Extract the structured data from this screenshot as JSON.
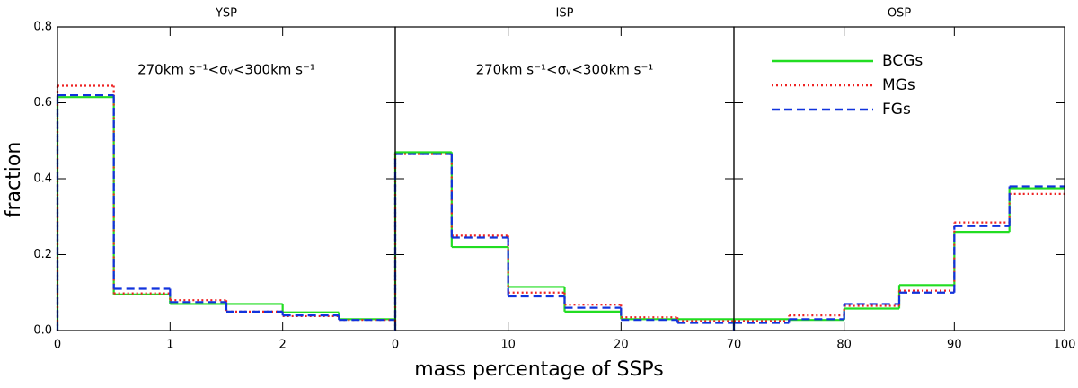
{
  "chart_data": [
    {
      "type": "histogram",
      "title": "YSP",
      "annotation": "270km s⁻¹<σᵥ<300km s⁻¹",
      "bins": [
        0,
        0.5,
        1,
        1.5,
        2,
        2.5,
        3
      ],
      "xlim": [
        0,
        3
      ],
      "xticks": [
        0,
        1,
        2
      ],
      "ylim": [
        0,
        0.8
      ],
      "yticks": [
        {
          "value": 0,
          "label": "0.0"
        },
        0.2,
        0.4,
        0.6,
        0.8
      ],
      "series": [
        {
          "values": [
            0.615,
            0.095,
            0.07,
            0.07,
            0.048,
            0.03
          ]
        },
        {
          "values": [
            0.645,
            0.098,
            0.08,
            0.05,
            0.038,
            0.028
          ]
        },
        {
          "values": [
            0.62,
            0.11,
            0.075,
            0.05,
            0.04,
            0.028
          ]
        }
      ]
    },
    {
      "type": "histogram",
      "title": "ISP",
      "annotation": "270km s⁻¹<σᵥ<300km s⁻¹",
      "bins": [
        0,
        5,
        10,
        15,
        20,
        25,
        30
      ],
      "xlim": [
        0,
        30
      ],
      "xticks": [
        0,
        10,
        20
      ],
      "ylim": [
        0,
        0.8
      ],
      "series": [
        {
          "values": [
            0.47,
            0.22,
            0.115,
            0.05,
            0.03,
            0.03
          ]
        },
        {
          "values": [
            0.465,
            0.25,
            0.1,
            0.068,
            0.035,
            0.025
          ]
        },
        {
          "values": [
            0.465,
            0.245,
            0.09,
            0.06,
            0.028,
            0.02
          ]
        }
      ]
    },
    {
      "type": "histogram",
      "title": "OSP",
      "bins": [
        70,
        75,
        80,
        85,
        90,
        95,
        100
      ],
      "xlim": [
        70,
        100
      ],
      "xticks": [
        70,
        80,
        90,
        100
      ],
      "ylim": [
        0,
        0.8
      ],
      "series": [
        {
          "values": [
            0.03,
            0.028,
            0.058,
            0.12,
            0.26,
            0.375
          ]
        },
        {
          "values": [
            0.025,
            0.04,
            0.065,
            0.105,
            0.285,
            0.36
          ]
        },
        {
          "values": [
            0.02,
            0.03,
            0.07,
            0.1,
            0.275,
            0.38
          ]
        }
      ]
    }
  ],
  "xlabel": "mass percentage of SSPs",
  "ylabel": "fraction",
  "legend": [
    {
      "name": "BCGs",
      "color": "#22dd22",
      "style": "solid"
    },
    {
      "name": "MGs",
      "color": "#ee2222",
      "style": "dotted"
    },
    {
      "name": "FGs",
      "color": "#1133dd",
      "style": "dashed"
    }
  ]
}
